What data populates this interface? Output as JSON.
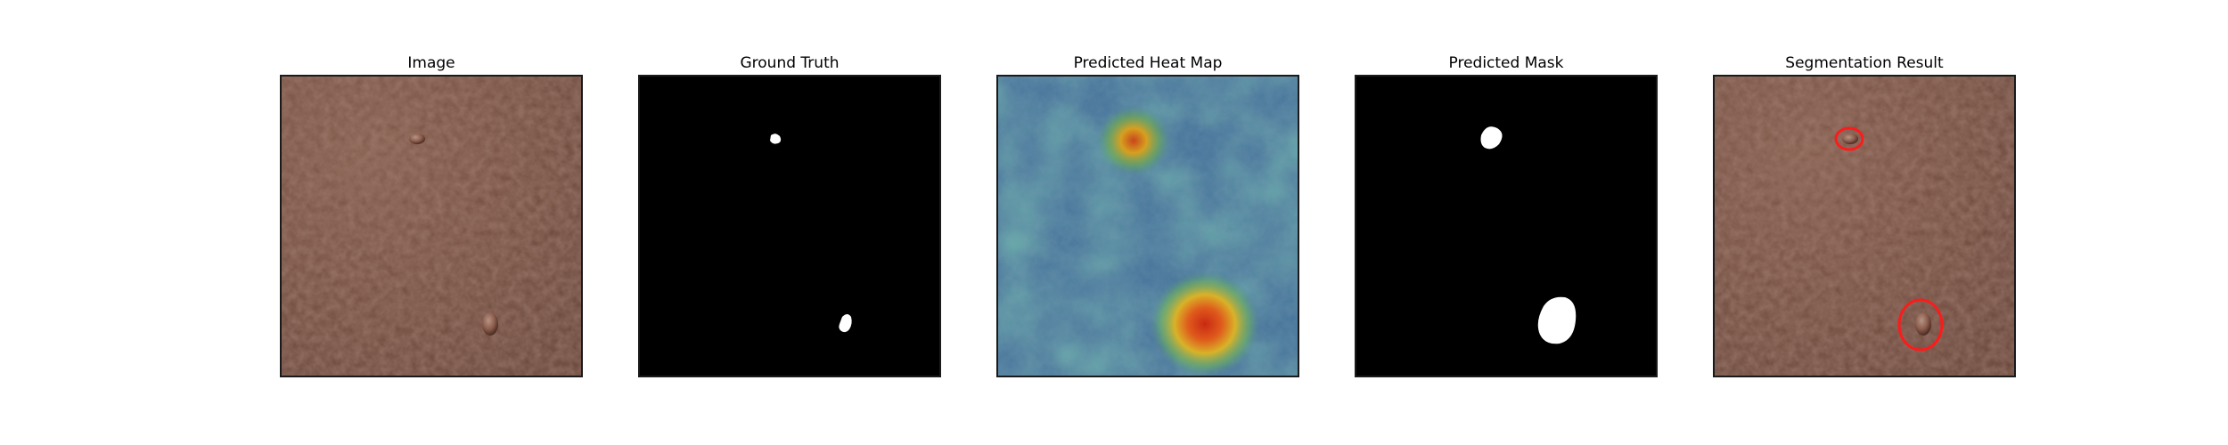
{
  "figure": {
    "panels": [
      {
        "title": "Image"
      },
      {
        "title": "Ground Truth"
      },
      {
        "title": "Predicted Heat Map"
      },
      {
        "title": "Predicted Mask"
      },
      {
        "title": "Segmentation Result"
      }
    ]
  },
  "colors": {
    "leather": "#6e4638",
    "mask_background": "#000000",
    "mask_foreground": "#ffffff",
    "heat_low": "#3f6f94",
    "heat_mid": "#4e8f86",
    "heat_high": "#d13a15",
    "contour": "#ff1a1a"
  }
}
